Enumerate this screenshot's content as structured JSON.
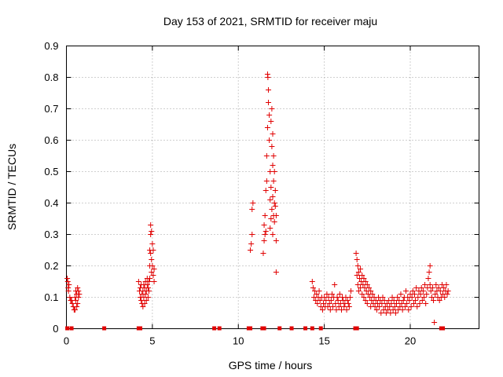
{
  "chart_data": {
    "type": "scatter",
    "title": "Day 153 of 2021, SRMTID for receiver maju",
    "xlabel": "GPS time / hours",
    "ylabel": "SRMTID / TECUs",
    "xlim": [
      0,
      24
    ],
    "ylim": [
      0,
      0.9
    ],
    "xticks": [
      0,
      5,
      10,
      15,
      20
    ],
    "xtick_labels": [
      "0",
      "5",
      "10",
      "15",
      "20"
    ],
    "yticks": [
      0,
      0.1,
      0.2,
      0.3,
      0.4,
      0.5,
      0.6,
      0.7,
      0.8,
      0.9
    ],
    "ytick_labels": [
      "0",
      "0.1",
      "0.2",
      "0.3",
      "0.4",
      "0.5",
      "0.6",
      "0.7",
      "0.8",
      "0.9"
    ],
    "grid": true,
    "marker": "plus",
    "color": "#e00000",
    "series": [
      {
        "name": "SRMTID",
        "points": [
          [
            0.05,
            0.16
          ],
          [
            0.08,
            0.15
          ],
          [
            0.1,
            0.13
          ],
          [
            0.12,
            0.12
          ],
          [
            0.15,
            0.14
          ],
          [
            0.2,
            0.1
          ],
          [
            0.25,
            0.09
          ],
          [
            0.3,
            0.09
          ],
          [
            0.35,
            0.08
          ],
          [
            0.4,
            0.07
          ],
          [
            0.45,
            0.06
          ],
          [
            0.5,
            0.06
          ],
          [
            0.5,
            0.1
          ],
          [
            0.55,
            0.09
          ],
          [
            0.55,
            0.12
          ],
          [
            0.6,
            0.07
          ],
          [
            0.6,
            0.11
          ],
          [
            0.65,
            0.08
          ],
          [
            0.65,
            0.13
          ],
          [
            0.7,
            0.1
          ],
          [
            0.7,
            0.12
          ],
          [
            0.75,
            0.11
          ],
          [
            4.2,
            0.15
          ],
          [
            4.25,
            0.12
          ],
          [
            4.3,
            0.1
          ],
          [
            4.3,
            0.13
          ],
          [
            4.35,
            0.09
          ],
          [
            4.35,
            0.14
          ],
          [
            4.4,
            0.08
          ],
          [
            4.4,
            0.11
          ],
          [
            4.45,
            0.07
          ],
          [
            4.45,
            0.12
          ],
          [
            4.5,
            0.1
          ],
          [
            4.5,
            0.14
          ],
          [
            4.55,
            0.08
          ],
          [
            4.55,
            0.13
          ],
          [
            4.6,
            0.11
          ],
          [
            4.6,
            0.15
          ],
          [
            4.65,
            0.09
          ],
          [
            4.65,
            0.12
          ],
          [
            4.7,
            0.14
          ],
          [
            4.7,
            0.16
          ],
          [
            4.75,
            0.1
          ],
          [
            4.75,
            0.13
          ],
          [
            4.8,
            0.15
          ],
          [
            4.8,
            0.12
          ],
          [
            4.85,
            0.16
          ],
          [
            4.85,
            0.2
          ],
          [
            4.85,
            0.25
          ],
          [
            4.9,
            0.3
          ],
          [
            4.9,
            0.33
          ],
          [
            4.9,
            0.24
          ],
          [
            4.95,
            0.31
          ],
          [
            4.95,
            0.18
          ],
          [
            4.95,
            0.22
          ],
          [
            5.0,
            0.27
          ],
          [
            5.0,
            0.2
          ],
          [
            5.05,
            0.25
          ],
          [
            5.05,
            0.17
          ],
          [
            5.1,
            0.15
          ],
          [
            5.1,
            0.19
          ],
          [
            10.7,
            0.25
          ],
          [
            10.75,
            0.27
          ],
          [
            10.8,
            0.3
          ],
          [
            10.8,
            0.38
          ],
          [
            10.85,
            0.4
          ],
          [
            11.45,
            0.24
          ],
          [
            11.5,
            0.28
          ],
          [
            11.5,
            0.33
          ],
          [
            11.55,
            0.3
          ],
          [
            11.55,
            0.36
          ],
          [
            11.6,
            0.31
          ],
          [
            11.6,
            0.44
          ],
          [
            11.65,
            0.47
          ],
          [
            11.65,
            0.55
          ],
          [
            11.7,
            0.64
          ],
          [
            11.7,
            0.81
          ],
          [
            11.72,
            0.8
          ],
          [
            11.75,
            0.72
          ],
          [
            11.75,
            0.76
          ],
          [
            11.8,
            0.68
          ],
          [
            11.8,
            0.6
          ],
          [
            11.85,
            0.5
          ],
          [
            11.85,
            0.41
          ],
          [
            11.85,
            0.32
          ],
          [
            11.9,
            0.66
          ],
          [
            11.9,
            0.45
          ],
          [
            11.9,
            0.35
          ],
          [
            11.95,
            0.7
          ],
          [
            11.95,
            0.58
          ],
          [
            11.95,
            0.38
          ],
          [
            12.0,
            0.62
          ],
          [
            12.0,
            0.52
          ],
          [
            12.0,
            0.42
          ],
          [
            12.0,
            0.3
          ],
          [
            12.05,
            0.55
          ],
          [
            12.05,
            0.47
          ],
          [
            12.05,
            0.36
          ],
          [
            12.1,
            0.5
          ],
          [
            12.1,
            0.4
          ],
          [
            12.1,
            0.34
          ],
          [
            12.15,
            0.44
          ],
          [
            12.15,
            0.39
          ],
          [
            12.2,
            0.36
          ],
          [
            12.2,
            0.28
          ],
          [
            12.2,
            0.18
          ],
          [
            14.3,
            0.15
          ],
          [
            14.35,
            0.13
          ],
          [
            14.4,
            0.1
          ],
          [
            14.45,
            0.12
          ],
          [
            14.5,
            0.09
          ],
          [
            14.55,
            0.11
          ],
          [
            14.6,
            0.08
          ],
          [
            14.65,
            0.1
          ],
          [
            14.7,
            0.12
          ],
          [
            14.75,
            0.09
          ],
          [
            14.8,
            0.07
          ],
          [
            14.85,
            0.1
          ],
          [
            14.9,
            0.06
          ],
          [
            14.95,
            0.08
          ],
          [
            15.0,
            0.1
          ],
          [
            15.05,
            0.07
          ],
          [
            15.1,
            0.09
          ],
          [
            15.15,
            0.11
          ],
          [
            15.2,
            0.07
          ],
          [
            15.25,
            0.1
          ],
          [
            15.3,
            0.08
          ],
          [
            15.35,
            0.06
          ],
          [
            15.4,
            0.09
          ],
          [
            15.45,
            0.11
          ],
          [
            15.5,
            0.07
          ],
          [
            15.55,
            0.1
          ],
          [
            15.6,
            0.14
          ],
          [
            15.65,
            0.08
          ],
          [
            15.7,
            0.06
          ],
          [
            15.75,
            0.1
          ],
          [
            15.8,
            0.09
          ],
          [
            15.85,
            0.07
          ],
          [
            15.9,
            0.11
          ],
          [
            15.95,
            0.08
          ],
          [
            16.0,
            0.06
          ],
          [
            16.05,
            0.1
          ],
          [
            16.1,
            0.09
          ],
          [
            16.15,
            0.07
          ],
          [
            16.2,
            0.08
          ],
          [
            16.25,
            0.1
          ],
          [
            16.3,
            0.06
          ],
          [
            16.35,
            0.09
          ],
          [
            16.4,
            0.08
          ],
          [
            16.45,
            0.07
          ],
          [
            16.5,
            0.1
          ],
          [
            16.55,
            0.12
          ],
          [
            16.85,
            0.24
          ],
          [
            16.9,
            0.22
          ],
          [
            16.9,
            0.17
          ],
          [
            16.95,
            0.2
          ],
          [
            16.95,
            0.14
          ],
          [
            17.0,
            0.18
          ],
          [
            17.0,
            0.12
          ],
          [
            17.05,
            0.16
          ],
          [
            17.1,
            0.19
          ],
          [
            17.1,
            0.13
          ],
          [
            17.15,
            0.15
          ],
          [
            17.2,
            0.17
          ],
          [
            17.2,
            0.11
          ],
          [
            17.25,
            0.14
          ],
          [
            17.3,
            0.16
          ],
          [
            17.3,
            0.1
          ],
          [
            17.35,
            0.13
          ],
          [
            17.4,
            0.15
          ],
          [
            17.4,
            0.09
          ],
          [
            17.45,
            0.12
          ],
          [
            17.5,
            0.14
          ],
          [
            17.5,
            0.08
          ],
          [
            17.55,
            0.11
          ],
          [
            17.6,
            0.13
          ],
          [
            17.65,
            0.1
          ],
          [
            17.7,
            0.12
          ],
          [
            17.7,
            0.07
          ],
          [
            17.75,
            0.09
          ],
          [
            17.8,
            0.11
          ],
          [
            17.85,
            0.08
          ],
          [
            17.9,
            0.1
          ],
          [
            17.95,
            0.07
          ],
          [
            18.0,
            0.09
          ],
          [
            18.05,
            0.06
          ],
          [
            18.1,
            0.08
          ],
          [
            18.15,
            0.1
          ],
          [
            18.2,
            0.07
          ],
          [
            18.25,
            0.09
          ],
          [
            18.3,
            0.05
          ],
          [
            18.35,
            0.08
          ],
          [
            18.4,
            0.1
          ],
          [
            18.45,
            0.06
          ],
          [
            18.5,
            0.09
          ],
          [
            18.55,
            0.07
          ],
          [
            18.6,
            0.05
          ],
          [
            18.65,
            0.08
          ],
          [
            18.7,
            0.06
          ],
          [
            18.75,
            0.09
          ],
          [
            18.8,
            0.07
          ],
          [
            18.85,
            0.05
          ],
          [
            18.9,
            0.08
          ],
          [
            18.95,
            0.1
          ],
          [
            19.0,
            0.06
          ],
          [
            19.05,
            0.09
          ],
          [
            19.1,
            0.07
          ],
          [
            19.15,
            0.05
          ],
          [
            19.2,
            0.08
          ],
          [
            19.25,
            0.1
          ],
          [
            19.3,
            0.06
          ],
          [
            19.35,
            0.09
          ],
          [
            19.4,
            0.07
          ],
          [
            19.45,
            0.11
          ],
          [
            19.5,
            0.08
          ],
          [
            19.55,
            0.06
          ],
          [
            19.6,
            0.09
          ],
          [
            19.65,
            0.1
          ],
          [
            19.7,
            0.07
          ],
          [
            19.75,
            0.12
          ],
          [
            19.8,
            0.08
          ],
          [
            19.85,
            0.1
          ],
          [
            19.9,
            0.06
          ],
          [
            19.95,
            0.09
          ],
          [
            20.0,
            0.11
          ],
          [
            20.05,
            0.07
          ],
          [
            20.1,
            0.1
          ],
          [
            20.15,
            0.12
          ],
          [
            20.2,
            0.08
          ],
          [
            20.25,
            0.11
          ],
          [
            20.3,
            0.09
          ],
          [
            20.35,
            0.13
          ],
          [
            20.4,
            0.07
          ],
          [
            20.45,
            0.1
          ],
          [
            20.5,
            0.12
          ],
          [
            20.55,
            0.08
          ],
          [
            20.6,
            0.11
          ],
          [
            20.65,
            0.13
          ],
          [
            20.7,
            0.09
          ],
          [
            20.75,
            0.12
          ],
          [
            20.8,
            0.1
          ],
          [
            20.85,
            0.14
          ],
          [
            20.9,
            0.08
          ],
          [
            20.95,
            0.11
          ],
          [
            21.0,
            0.13
          ],
          [
            21.05,
            0.16
          ],
          [
            21.1,
            0.18
          ],
          [
            21.15,
            0.2
          ],
          [
            21.15,
            0.14
          ],
          [
            21.2,
            0.12
          ],
          [
            21.25,
            0.1
          ],
          [
            21.3,
            0.13
          ],
          [
            21.35,
            0.09
          ],
          [
            21.4,
            0.02
          ],
          [
            21.45,
            0.11
          ],
          [
            21.5,
            0.14
          ],
          [
            21.55,
            0.12
          ],
          [
            21.6,
            0.1
          ],
          [
            21.65,
            0.13
          ],
          [
            21.7,
            0.09
          ],
          [
            21.75,
            0.12
          ],
          [
            21.8,
            0.1
          ],
          [
            21.85,
            0.14
          ],
          [
            21.9,
            0.11
          ],
          [
            21.95,
            0.13
          ],
          [
            22.0,
            0.1
          ],
          [
            22.05,
            0.12
          ],
          [
            22.1,
            0.14
          ],
          [
            22.15,
            0.11
          ],
          [
            22.2,
            0.12
          ]
        ]
      }
    ],
    "baseline_markers": [
      0.05,
      0.3,
      2.2,
      4.2,
      4.3,
      8.6,
      8.9,
      10.6,
      10.7,
      11.4,
      11.5,
      12.4,
      13.1,
      13.9,
      14.3,
      14.8,
      16.8,
      16.9,
      21.8,
      21.9
    ]
  }
}
